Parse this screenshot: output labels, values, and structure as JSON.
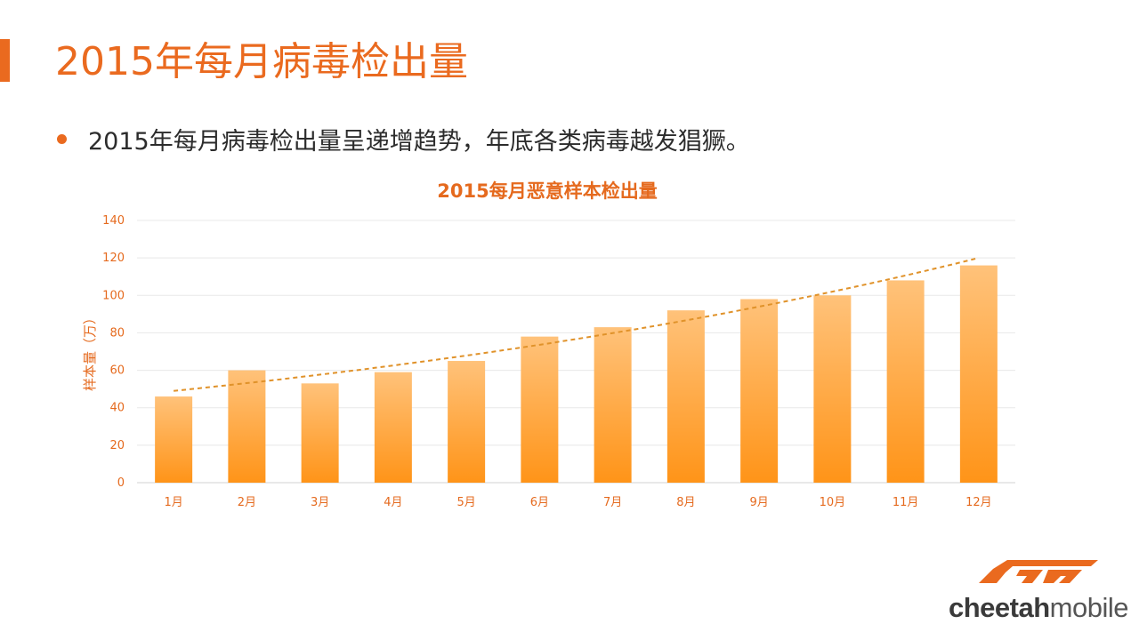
{
  "slide": {
    "title": "2015年每月病毒检出量",
    "bullet": "2015年每月病毒检出量呈递增趋势，年底各类病毒越发猖獗。"
  },
  "colors": {
    "accent": "#ea6a1f",
    "bar_top": "#ffc27a",
    "bar_bottom": "#ff9418",
    "trend": "#e0922a",
    "axis_text": "#e56a1e",
    "grid": "#e8e8e8"
  },
  "chart_data": {
    "type": "bar",
    "title": "2015每月恶意样本检出量",
    "xlabel": "",
    "ylabel": "样本量（万）",
    "categories": [
      "1月",
      "2月",
      "3月",
      "4月",
      "5月",
      "6月",
      "7月",
      "8月",
      "9月",
      "10月",
      "11月",
      "12月"
    ],
    "values": [
      46,
      60,
      53,
      59,
      65,
      78,
      83,
      92,
      98,
      100,
      108,
      116
    ],
    "ylim": [
      0,
      140
    ],
    "yticks": [
      0,
      20,
      40,
      60,
      80,
      100,
      120,
      140
    ],
    "grid": true,
    "trendline": {
      "type": "exponential",
      "start_value": 49,
      "end_value": 120,
      "style": "dashed"
    }
  },
  "logo": {
    "text_bold": "cheetah",
    "text_light": "mobile",
    "icon": "cm-logo-icon"
  }
}
